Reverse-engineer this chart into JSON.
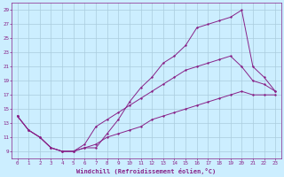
{
  "xlabel": "Windchill (Refroidissement éolien,°C)",
  "bg_color": "#cceeff",
  "grid_color": "#aaccdd",
  "line_color": "#882288",
  "xlim": [
    -0.5,
    23.5
  ],
  "ylim": [
    8,
    30
  ],
  "yticks": [
    9,
    11,
    13,
    15,
    17,
    19,
    21,
    23,
    25,
    27,
    29
  ],
  "xticks": [
    0,
    1,
    2,
    3,
    4,
    5,
    6,
    7,
    8,
    9,
    10,
    11,
    12,
    13,
    14,
    15,
    16,
    17,
    18,
    19,
    20,
    21,
    22,
    23
  ],
  "line1_x": [
    0,
    1,
    2,
    3,
    4,
    5,
    6,
    7,
    8,
    9,
    10,
    11,
    12,
    13,
    14,
    15,
    16,
    17,
    18,
    19,
    20,
    21,
    22,
    23
  ],
  "line1_y": [
    14.0,
    12.0,
    11.0,
    9.5,
    9.0,
    9.0,
    9.5,
    9.5,
    11.5,
    13.5,
    16.0,
    18.0,
    19.5,
    21.5,
    22.5,
    24.0,
    26.5,
    27.0,
    27.5,
    28.0,
    29.0,
    21.0,
    19.5,
    17.5
  ],
  "line2_x": [
    0,
    1,
    2,
    3,
    4,
    5,
    6,
    7,
    8,
    9,
    10,
    11,
    12,
    13,
    14,
    15,
    16,
    17,
    18,
    19,
    20,
    21,
    22,
    23
  ],
  "line2_y": [
    14.0,
    12.0,
    11.0,
    9.5,
    9.0,
    9.0,
    10.0,
    12.5,
    13.5,
    14.5,
    15.5,
    16.5,
    17.5,
    18.5,
    19.5,
    20.5,
    21.0,
    21.5,
    22.0,
    22.5,
    21.0,
    19.0,
    18.5,
    17.5
  ],
  "line3_x": [
    0,
    1,
    2,
    3,
    4,
    5,
    6,
    7,
    8,
    9,
    10,
    11,
    12,
    13,
    14,
    15,
    16,
    17,
    18,
    19,
    20,
    21,
    22,
    23
  ],
  "line3_y": [
    14.0,
    12.0,
    11.0,
    9.5,
    9.0,
    9.0,
    9.5,
    10.0,
    11.0,
    11.5,
    12.0,
    12.5,
    13.5,
    14.0,
    14.5,
    15.0,
    15.5,
    16.0,
    16.5,
    17.0,
    17.5,
    17.0,
    17.0,
    17.0
  ]
}
